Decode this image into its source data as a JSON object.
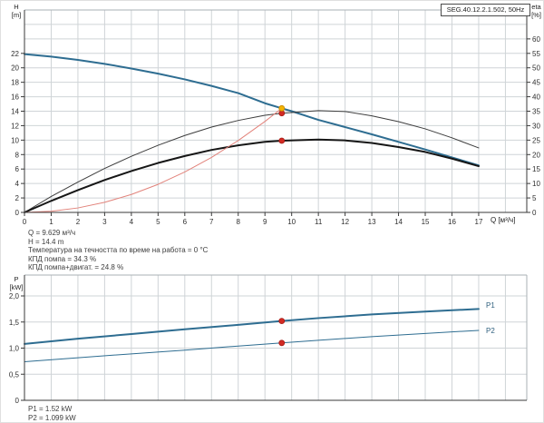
{
  "window": {
    "background": "#ffffff"
  },
  "title_box": "SEG.40.12.2.1.502, 50Hz",
  "colors": {
    "grid": "#cfd4d7",
    "frame": "#aab0b4",
    "axis": "#3a3a3a",
    "curve_blue": "#2e6d91",
    "curve_eta_thin": "#3c3c3c",
    "curve_eta_thick": "#161616",
    "curve_system_red": "#e2837b",
    "marker_red": "#d22b24",
    "marker_yellow": "#f2b402",
    "text": "#3d3d3d"
  },
  "info_block": {
    "lines": [
      "Q = 9.629 м³/ч",
      "H = 14.4 m",
      "Температура на течността по време на работа = 0 °C",
      "КПД помпа = 34.3 %",
      "КПД помпа+двигат. = 24.8 %"
    ]
  },
  "power_block": {
    "lines": [
      "P1 = 1.52 kW",
      "P2 = 1.099 kW"
    ]
  },
  "chart_data": [
    {
      "type": "line",
      "title": "SEG.40.12.2.1.502, 50Hz",
      "xlabel": "Q [м³/ч]",
      "ylabel_left": "H [m]",
      "ylabel_left_lines": [
        "H",
        "[m]"
      ],
      "ylabel_right": "eta [%]",
      "ylabel_right_lines": [
        "eta",
        "[%]"
      ],
      "xlim": [
        0,
        18.8
      ],
      "ylim_left": [
        0,
        28
      ],
      "ylim_right": [
        0,
        70
      ],
      "grid": true,
      "x_ticks": [
        {
          "v": 0,
          "label": "0"
        },
        {
          "v": 1,
          "label": "1"
        },
        {
          "v": 2,
          "label": "2"
        },
        {
          "v": 3,
          "label": "3"
        },
        {
          "v": 4,
          "label": "4"
        },
        {
          "v": 5,
          "label": "5"
        },
        {
          "v": 6,
          "label": "6"
        },
        {
          "v": 7,
          "label": "7"
        },
        {
          "v": 8,
          "label": "8"
        },
        {
          "v": 9,
          "label": "9"
        },
        {
          "v": 10,
          "label": "10"
        },
        {
          "v": 11,
          "label": "11"
        },
        {
          "v": 12,
          "label": "12"
        },
        {
          "v": 13,
          "label": "13"
        },
        {
          "v": 14,
          "label": "14"
        },
        {
          "v": 15,
          "label": "15"
        },
        {
          "v": 16,
          "label": "16"
        },
        {
          "v": 17,
          "label": "17"
        }
      ],
      "y_ticks_left": [
        {
          "v": 0,
          "label": "0"
        },
        {
          "v": 2,
          "label": "2"
        },
        {
          "v": 4,
          "label": "4"
        },
        {
          "v": 6,
          "label": "6"
        },
        {
          "v": 8,
          "label": "8"
        },
        {
          "v": 10,
          "label": "10"
        },
        {
          "v": 12,
          "label": "12"
        },
        {
          "v": 14,
          "label": "14"
        },
        {
          "v": 16,
          "label": "16"
        },
        {
          "v": 18,
          "label": "18"
        },
        {
          "v": 20,
          "label": "20"
        },
        {
          "v": 22,
          "label": "22"
        }
      ],
      "y_ticks_right": [
        {
          "v": 0,
          "label": "0"
        },
        {
          "v": 5,
          "label": "5"
        },
        {
          "v": 10,
          "label": "10"
        },
        {
          "v": 15,
          "label": "15"
        },
        {
          "v": 20,
          "label": "20"
        },
        {
          "v": 25,
          "label": "25"
        },
        {
          "v": 30,
          "label": "30"
        },
        {
          "v": 35,
          "label": "35"
        },
        {
          "v": 40,
          "label": "40"
        },
        {
          "v": 45,
          "label": "45"
        },
        {
          "v": 50,
          "label": "50"
        },
        {
          "v": 55,
          "label": "55"
        },
        {
          "v": 60,
          "label": "60"
        }
      ],
      "y_grid": [
        2,
        4,
        6,
        8,
        10,
        12,
        14,
        16,
        18,
        20,
        22,
        24,
        26
      ],
      "series": [
        {
          "name": "QH curve",
          "axis": "left",
          "color": "#2e6d91",
          "width": 2,
          "points": [
            [
              0,
              21.9
            ],
            [
              1,
              21.55
            ],
            [
              2,
              21.1
            ],
            [
              3,
              20.55
            ],
            [
              4,
              19.9
            ],
            [
              5,
              19.2
            ],
            [
              6,
              18.4
            ],
            [
              7,
              17.5
            ],
            [
              8,
              16.5
            ],
            [
              9,
              15.1
            ],
            [
              9.629,
              14.4
            ],
            [
              10,
              14.0
            ],
            [
              11,
              12.8
            ],
            [
              12,
              11.8
            ],
            [
              13,
              10.8
            ],
            [
              14,
              9.75
            ],
            [
              15,
              8.7
            ],
            [
              16,
              7.6
            ],
            [
              17,
              6.5
            ]
          ]
        },
        {
          "name": "eta pump",
          "axis": "right",
          "color": "#3c3c3c",
          "width": 1,
          "points": [
            [
              0,
              0
            ],
            [
              1,
              5.5
            ],
            [
              2,
              10.5
            ],
            [
              3,
              15.2
            ],
            [
              4,
              19.4
            ],
            [
              5,
              23.2
            ],
            [
              6,
              26.6
            ],
            [
              7,
              29.5
            ],
            [
              8,
              31.8
            ],
            [
              9,
              33.6
            ],
            [
              9.629,
              34.3
            ],
            [
              11,
              35.2
            ],
            [
              12,
              34.9
            ],
            [
              13,
              33.4
            ],
            [
              14,
              31.4
            ],
            [
              15,
              28.9
            ],
            [
              16,
              25.8
            ],
            [
              17,
              22.3
            ]
          ]
        },
        {
          "name": "eta pump+motor",
          "axis": "right",
          "color": "#161616",
          "width": 2,
          "points": [
            [
              0,
              0
            ],
            [
              1,
              4.0
            ],
            [
              2,
              7.7
            ],
            [
              3,
              11.2
            ],
            [
              4,
              14.3
            ],
            [
              5,
              17.1
            ],
            [
              6,
              19.5
            ],
            [
              7,
              21.6
            ],
            [
              8,
              23.2
            ],
            [
              9,
              24.4
            ],
            [
              9.629,
              24.8
            ],
            [
              11,
              25.2
            ],
            [
              12,
              24.9
            ],
            [
              13,
              24.0
            ],
            [
              14,
              22.6
            ],
            [
              15,
              20.9
            ],
            [
              16,
              18.6
            ],
            [
              17,
              16.0
            ]
          ]
        },
        {
          "name": "system curve",
          "axis": "left",
          "color": "#e2837b",
          "width": 1,
          "points": [
            [
              0,
              0
            ],
            [
              1,
              0.16
            ],
            [
              2,
              0.62
            ],
            [
              3,
              1.4
            ],
            [
              4,
              2.48
            ],
            [
              5,
              3.88
            ],
            [
              6,
              5.59
            ],
            [
              7,
              7.61
            ],
            [
              8,
              9.94
            ],
            [
              9,
              12.58
            ],
            [
              9.629,
              14.4
            ]
          ]
        }
      ],
      "markers": [
        {
          "name": "eta-pump-point",
          "x": 9.629,
          "y": 34.3,
          "axis": "right",
          "fill": "#d22b24",
          "stroke": "#a61b16"
        },
        {
          "name": "eta-motor-point",
          "x": 9.629,
          "y": 24.8,
          "axis": "right",
          "fill": "#d22b24",
          "stroke": "#a61b16"
        },
        {
          "name": "duty-point",
          "x": 9.629,
          "y": 14.4,
          "axis": "left",
          "fill": "#f2b402",
          "stroke": "#c98a00"
        }
      ]
    },
    {
      "type": "line",
      "ylabel_left": "P [kW]",
      "ylabel_left_lines": [
        "P",
        "[kW]"
      ],
      "xlim": [
        0,
        18.8
      ],
      "ylim_left": [
        0,
        2.4
      ],
      "grid": true,
      "y_ticks_left": [
        {
          "v": 0,
          "label": "0"
        },
        {
          "v": 0.5,
          "label": "0,5"
        },
        {
          "v": 1.0,
          "label": "1,0"
        },
        {
          "v": 1.5,
          "label": "1,5"
        },
        {
          "v": 2.0,
          "label": "2,0"
        }
      ],
      "y_grid": [
        0.5,
        1.0,
        1.5,
        2.0
      ],
      "series": [
        {
          "name": "P1",
          "axis": "left",
          "color": "#2e6d91",
          "width": 2,
          "points": [
            [
              0,
              1.08
            ],
            [
              2,
              1.18
            ],
            [
              4,
              1.27
            ],
            [
              6,
              1.36
            ],
            [
              8,
              1.445
            ],
            [
              9.629,
              1.52
            ],
            [
              11,
              1.575
            ],
            [
              13,
              1.645
            ],
            [
              15,
              1.7
            ],
            [
              17,
              1.75
            ]
          ]
        },
        {
          "name": "P2",
          "axis": "left",
          "color": "#2e6d91",
          "width": 1,
          "points": [
            [
              0,
              0.74
            ],
            [
              2,
              0.815
            ],
            [
              4,
              0.89
            ],
            [
              6,
              0.96
            ],
            [
              8,
              1.04
            ],
            [
              9.629,
              1.099
            ],
            [
              11,
              1.15
            ],
            [
              13,
              1.22
            ],
            [
              15,
              1.28
            ],
            [
              17,
              1.34
            ]
          ]
        }
      ],
      "markers": [
        {
          "name": "p1-point",
          "x": 9.629,
          "y": 1.52,
          "axis": "left",
          "fill": "#d22b24",
          "stroke": "#a61b16"
        },
        {
          "name": "p2-point",
          "x": 9.629,
          "y": 1.099,
          "axis": "left",
          "fill": "#d22b24",
          "stroke": "#a61b16"
        }
      ]
    }
  ]
}
